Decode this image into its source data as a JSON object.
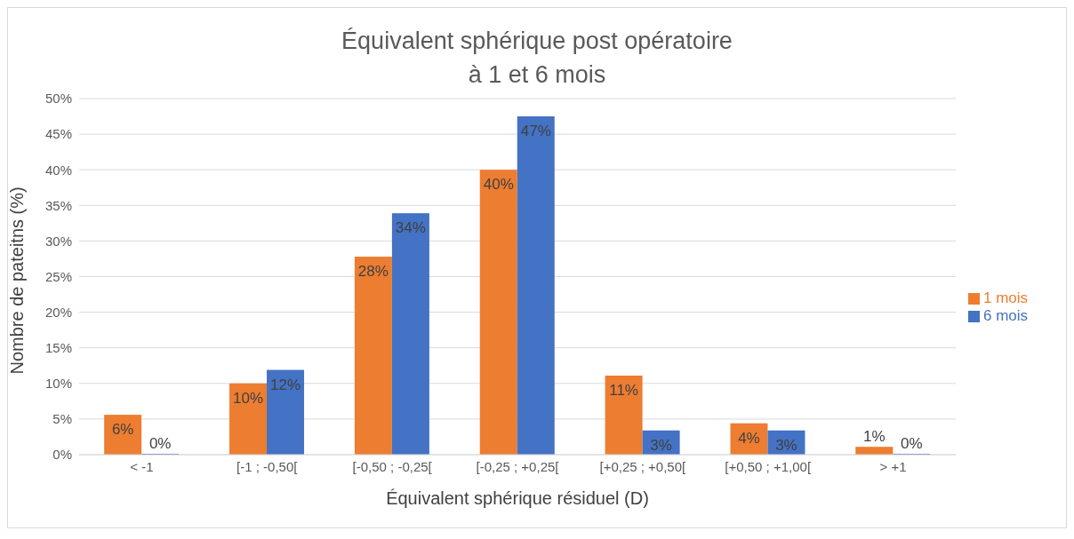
{
  "chart_data": {
    "type": "bar",
    "title": "Équivalent sphérique post opératoire\nà 1 et 6 mois",
    "xlabel": "Équivalent sphérique résiduel (D)",
    "ylabel": "Nombre de pateitns (%)",
    "categories": [
      "< -1",
      "[-1 ; -0,50[",
      "[-0,50 ; -0,25[",
      "[-0,25 ; +0,25[",
      "[+0,25 ; +0,50[",
      "[+0,50 ; +1,00[",
      "> +1"
    ],
    "series": [
      {
        "name": "1 mois",
        "color": "#ed7d31",
        "values": [
          5.6,
          10,
          27.8,
          40,
          11.1,
          4.4,
          1.1
        ],
        "value_labels": [
          "6%",
          "10%",
          "28%",
          "40%",
          "11%",
          "4%",
          "1%"
        ]
      },
      {
        "name": "6 mois",
        "color": "#4472c4",
        "values": [
          0,
          11.9,
          33.9,
          47.5,
          3.4,
          3.4,
          0
        ],
        "value_labels": [
          "0%",
          "12%",
          "34%",
          "47%",
          "3%",
          "3%",
          "0%"
        ]
      }
    ],
    "ylim": [
      0,
      50
    ],
    "yticks": [
      {
        "value": 0,
        "label": "0%"
      },
      {
        "value": 5,
        "label": "5%"
      },
      {
        "value": 10,
        "label": "10%"
      },
      {
        "value": 15,
        "label": "15%"
      },
      {
        "value": 20,
        "label": "20%"
      },
      {
        "value": 25,
        "label": "25%"
      },
      {
        "value": 30,
        "label": "30%"
      },
      {
        "value": 35,
        "label": "35%"
      },
      {
        "value": 40,
        "label": "40%"
      },
      {
        "value": 45,
        "label": "45%"
      },
      {
        "value": 50,
        "label": "50%"
      }
    ],
    "grid": "y",
    "legend": "right"
  }
}
